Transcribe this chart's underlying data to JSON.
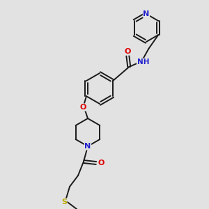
{
  "background_color": "#e2e2e2",
  "bond_color": "#1a1a1a",
  "atom_colors": {
    "N": "#2020cc",
    "O": "#dd0000",
    "S": "#bbaa00",
    "C": "#1a1a1a"
  },
  "figsize": [
    3.0,
    3.0
  ],
  "dpi": 100,
  "lw": 1.4,
  "dbl_off": 2.0,
  "r_ring": 20,
  "r_pip": 19
}
